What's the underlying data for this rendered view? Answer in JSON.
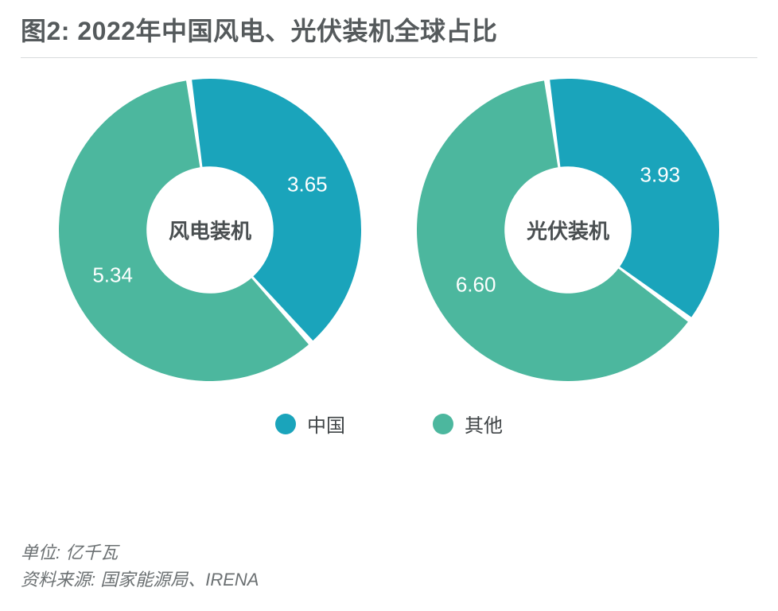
{
  "title": "图2: 2022年中国风电、光伏装机全球占比",
  "title_fontsize": 32,
  "title_color": "#555a5c",
  "background_color": "#ffffff",
  "divider_color": "#d8dbdc",
  "legend": {
    "items": [
      {
        "label": "中国",
        "color": "#1aa4bb"
      },
      {
        "label": "其他",
        "color": "#4cb79e"
      }
    ],
    "fontsize": 24,
    "swatch_diameter": 26
  },
  "footnotes": {
    "unit": "单位: 亿千瓦",
    "source": "资料来源: 国家能源局、IRENA",
    "fontsize": 22,
    "color": "#6b7072"
  },
  "charts": [
    {
      "type": "donut",
      "center_label": "风电装机",
      "center_fontsize": 26,
      "diameter": 380,
      "inner_ratio": 0.42,
      "gap_deg": 2.2,
      "start_angle_deg": -8,
      "value_label_fontsize": 26,
      "value_label_color": "#ffffff",
      "slices": [
        {
          "name": "china",
          "value": 3.65,
          "value_label": "3.65",
          "color": "#1aa4bb"
        },
        {
          "name": "other",
          "value": 5.34,
          "value_label": "5.34",
          "color": "#4cb79e"
        }
      ]
    },
    {
      "type": "donut",
      "center_label": "光伏装机",
      "center_fontsize": 26,
      "diameter": 380,
      "inner_ratio": 0.42,
      "gap_deg": 2.2,
      "start_angle_deg": -8,
      "value_label_fontsize": 26,
      "value_label_color": "#ffffff",
      "slices": [
        {
          "name": "china",
          "value": 3.93,
          "value_label": "3.93",
          "color": "#1aa4bb"
        },
        {
          "name": "other",
          "value": 6.6,
          "value_label": "6.60",
          "color": "#4cb79e"
        }
      ]
    }
  ]
}
